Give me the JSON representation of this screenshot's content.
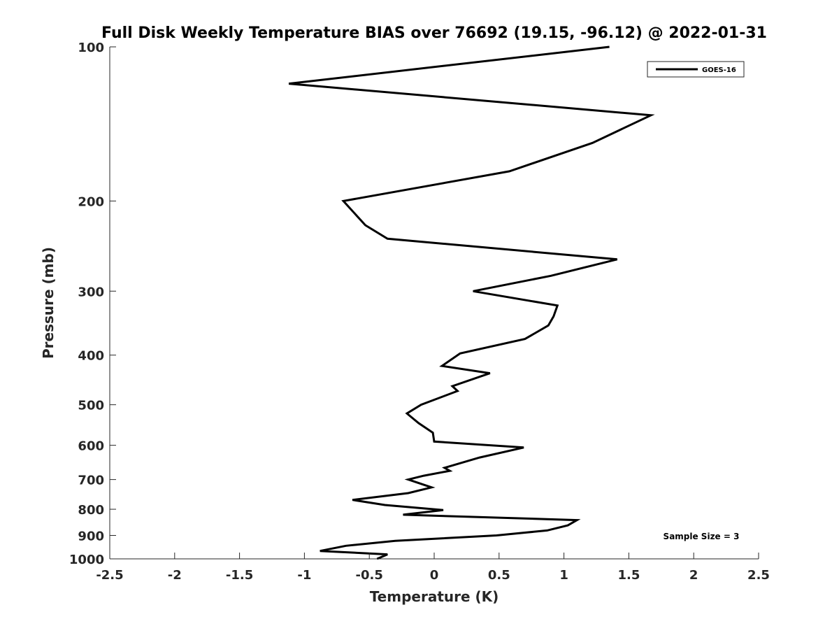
{
  "chart_data": {
    "type": "line",
    "title": "Full Disk Weekly Temperature BIAS over 76692 (19.15, -96.12) @ 2022-01-31",
    "xlabel": "Temperature (K)",
    "ylabel": "Pressure (mb)",
    "xlim": [
      -2.5,
      2.5
    ],
    "ylim": [
      1000,
      100
    ],
    "yscale": "log",
    "xticks": [
      -2.5,
      -2,
      -1.5,
      -1,
      -0.5,
      0,
      0.5,
      1,
      1.5,
      2,
      2.5
    ],
    "xtick_labels": [
      "-2.5",
      "-2",
      "-1.5",
      "-1",
      "-0.5",
      "0",
      "0.5",
      "1",
      "1.5",
      "2",
      "2.5"
    ],
    "yticks": [
      100,
      200,
      300,
      400,
      500,
      600,
      700,
      800,
      900,
      1000
    ],
    "ytick_labels": [
      "100",
      "200",
      "300",
      "400",
      "500",
      "600",
      "700",
      "800",
      "900",
      "1000"
    ],
    "grid": false,
    "legend_position": "top-right",
    "annotation": "Sample Size = 3",
    "series": [
      {
        "name": "GOES-16",
        "color": "#000000",
        "points": [
          [
            1.35,
            100
          ],
          [
            -1.12,
            118
          ],
          [
            1.67,
            136
          ],
          [
            1.22,
            154
          ],
          [
            0.58,
            175
          ],
          [
            -0.7,
            200
          ],
          [
            -0.53,
            223
          ],
          [
            -0.36,
            237
          ],
          [
            1.41,
            260
          ],
          [
            0.9,
            280
          ],
          [
            0.3,
            300
          ],
          [
            0.95,
            320
          ],
          [
            0.92,
            336
          ],
          [
            0.88,
            350
          ],
          [
            0.7,
            372
          ],
          [
            0.2,
            397
          ],
          [
            0.06,
            420
          ],
          [
            0.43,
            434
          ],
          [
            0.14,
            460
          ],
          [
            0.18,
            470
          ],
          [
            -0.1,
            500
          ],
          [
            -0.21,
            520
          ],
          [
            -0.12,
            543
          ],
          [
            -0.01,
            567
          ],
          [
            0.0,
            590
          ],
          [
            0.69,
            606
          ],
          [
            0.35,
            634
          ],
          [
            0.08,
            664
          ],
          [
            0.12,
            673
          ],
          [
            -0.08,
            688
          ],
          [
            -0.2,
            700
          ],
          [
            -0.02,
            725
          ],
          [
            -0.2,
            744
          ],
          [
            -0.63,
            767
          ],
          [
            -0.38,
            785
          ],
          [
            0.07,
            803
          ],
          [
            -0.24,
            820
          ],
          [
            1.1,
            840
          ],
          [
            1.03,
            860
          ],
          [
            0.87,
            880
          ],
          [
            0.48,
            900
          ],
          [
            -0.3,
            922
          ],
          [
            -0.68,
            943
          ],
          [
            -0.88,
            965
          ],
          [
            -0.36,
            980
          ],
          [
            -0.44,
            1000
          ]
        ]
      }
    ]
  }
}
